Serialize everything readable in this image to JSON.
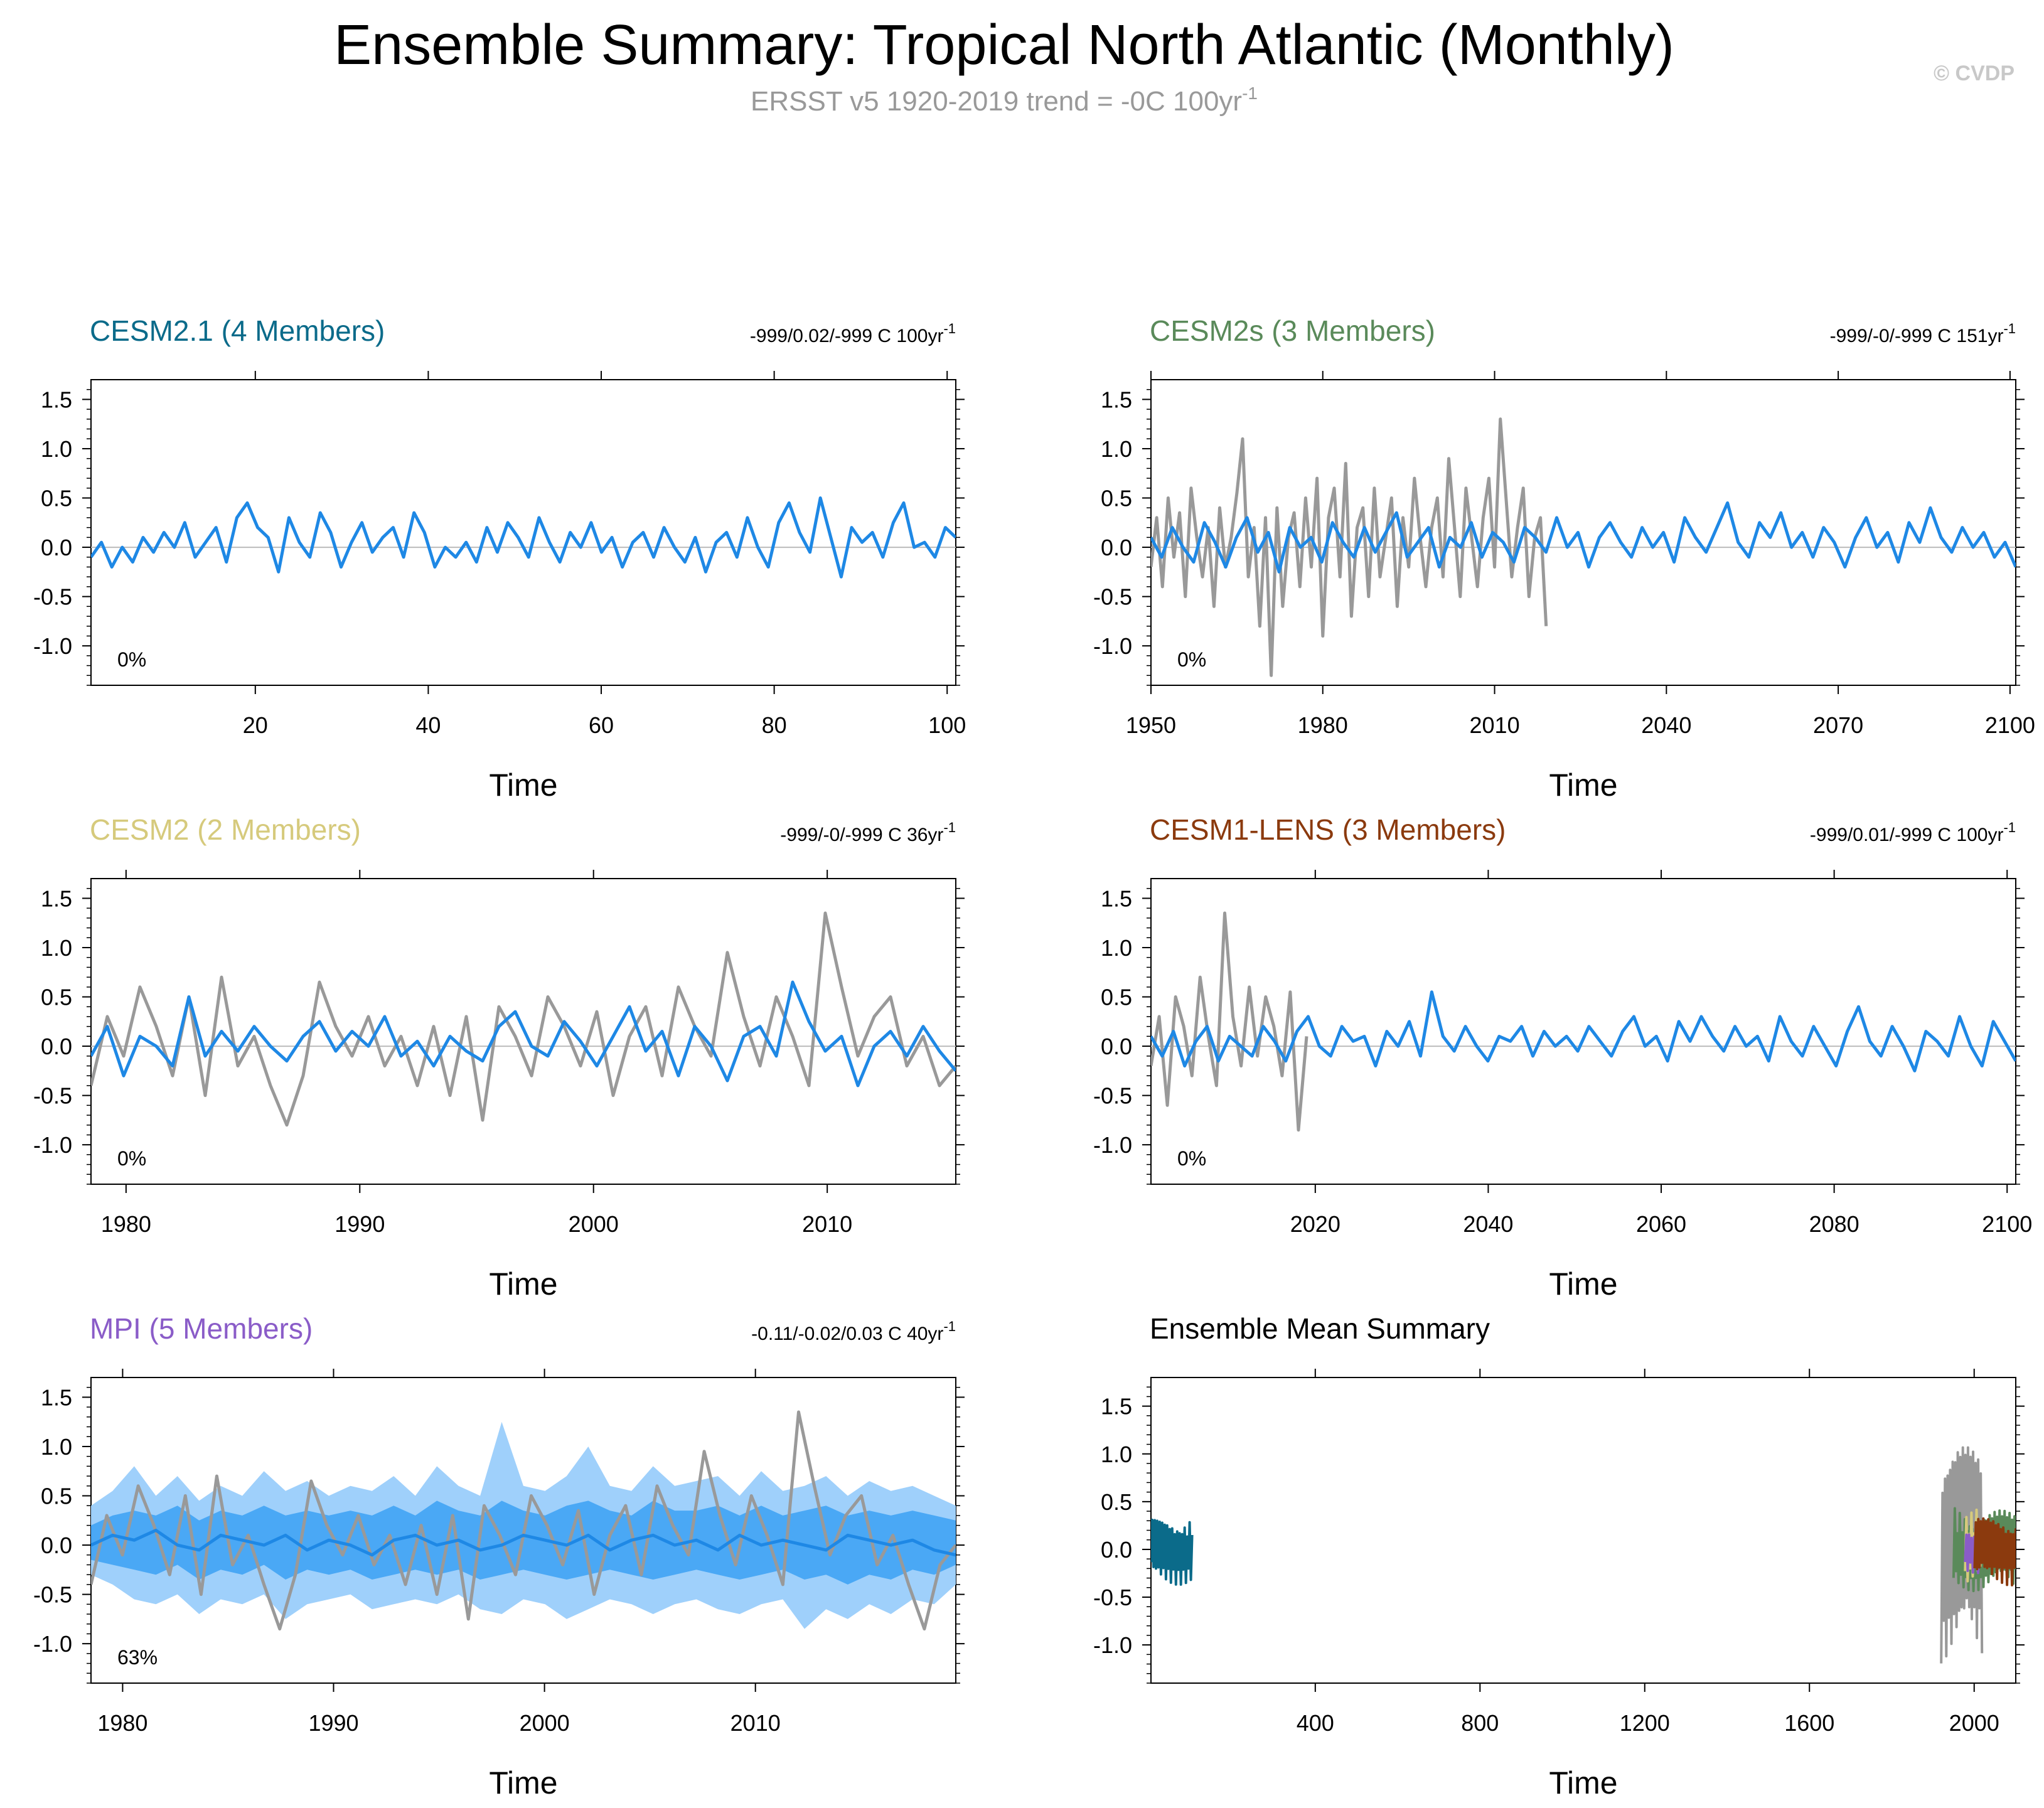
{
  "title": "Ensemble Summary: Tropical North Atlantic (Monthly)",
  "subtitle": "ERSST v5 1920-2019 trend = -0C 100yr",
  "subtitle_sup": "-1",
  "copyright": "© CVDP",
  "colors": {
    "obs": "#999999",
    "model": "#1e88e5",
    "spread_outer": "#9fd0fb",
    "spread_inner": "#4aa8f5"
  },
  "chart_data": [
    {
      "type": "line",
      "title": "CESM2.1 (4 Members)",
      "title_color": "#0b6b8a",
      "trend_label": "-999/0.02/-999 C 100yr",
      "trend_sup": "-1",
      "percent_label": "0%",
      "xlabel": "Time",
      "xlim": [
        1,
        101
      ],
      "ylim": [
        -1.4,
        1.7
      ],
      "xticks": [
        20,
        40,
        60,
        80,
        100
      ],
      "yticks": [
        -1.0,
        -0.5,
        0.0,
        0.5,
        1.0,
        1.5
      ],
      "series": [
        {
          "name": "Ensemble mean",
          "color": "#1e88e5",
          "x_start": 1,
          "x_end": 101,
          "values": [
            -0.1,
            0.05,
            -0.2,
            0.0,
            -0.15,
            0.1,
            -0.05,
            0.15,
            0.0,
            0.25,
            -0.1,
            0.05,
            0.2,
            -0.15,
            0.3,
            0.45,
            0.2,
            0.1,
            -0.25,
            0.3,
            0.05,
            -0.1,
            0.35,
            0.15,
            -0.2,
            0.05,
            0.25,
            -0.05,
            0.1,
            0.2,
            -0.1,
            0.35,
            0.15,
            -0.2,
            0.0,
            -0.1,
            0.05,
            -0.15,
            0.2,
            -0.05,
            0.25,
            0.1,
            -0.1,
            0.3,
            0.05,
            -0.15,
            0.15,
            0.0,
            0.25,
            -0.05,
            0.1,
            -0.2,
            0.05,
            0.15,
            -0.1,
            0.2,
            0.0,
            -0.15,
            0.1,
            -0.25,
            0.05,
            0.15,
            -0.1,
            0.3,
            0.0,
            -0.2,
            0.25,
            0.45,
            0.15,
            -0.05,
            0.5,
            0.1,
            -0.3,
            0.2,
            0.05,
            0.15,
            -0.1,
            0.25,
            0.45,
            0.0,
            0.05,
            -0.1,
            0.2,
            0.1
          ]
        }
      ]
    },
    {
      "type": "line",
      "title": "CESM2s (3 Members)",
      "title_color": "#5a8a5a",
      "trend_label": "-999/-0/-999 C 151yr",
      "trend_sup": "-1",
      "percent_label": "0%",
      "xlabel": "Time",
      "xlim": [
        1950,
        2101
      ],
      "ylim": [
        -1.4,
        1.7
      ],
      "xticks": [
        1950,
        1980,
        2010,
        2040,
        2070,
        2100
      ],
      "yticks": [
        -1.0,
        -0.5,
        0.0,
        0.5,
        1.0,
        1.5
      ],
      "series": [
        {
          "name": "ERSST v5",
          "color": "#999999",
          "x_start": 1950,
          "x_end": 2019,
          "values": [
            -0.2,
            0.3,
            -0.4,
            0.5,
            -0.1,
            0.35,
            -0.5,
            0.6,
            0.1,
            -0.3,
            0.2,
            -0.6,
            0.4,
            -0.2,
            0.1,
            0.55,
            1.1,
            -0.3,
            0.2,
            -0.8,
            0.3,
            -1.3,
            0.4,
            -0.6,
            0.1,
            0.35,
            -0.4,
            0.5,
            -0.2,
            0.7,
            -0.9,
            0.3,
            0.6,
            -0.3,
            0.85,
            -0.7,
            0.2,
            0.4,
            -0.5,
            0.6,
            -0.3,
            0.1,
            0.5,
            -0.6,
            0.3,
            -0.2,
            0.7,
            0.1,
            -0.4,
            0.2,
            0.5,
            -0.3,
            0.9,
            0.2,
            -0.5,
            0.6,
            0.1,
            -0.4,
            0.3,
            0.7,
            -0.2,
            1.3,
            0.5,
            -0.3,
            0.2,
            0.6,
            -0.5,
            0.1,
            0.3,
            -0.8
          ]
        },
        {
          "name": "Ensemble mean",
          "color": "#1e88e5",
          "x_start": 1950,
          "x_end": 2101,
          "values": [
            0.1,
            -0.1,
            0.2,
            0.0,
            -0.15,
            0.25,
            0.05,
            -0.2,
            0.1,
            0.3,
            -0.05,
            0.15,
            -0.25,
            0.2,
            0.0,
            0.1,
            -0.15,
            0.25,
            0.05,
            -0.1,
            0.2,
            -0.05,
            0.15,
            0.35,
            -0.1,
            0.05,
            0.2,
            -0.2,
            0.1,
            0.0,
            0.25,
            -0.1,
            0.15,
            0.05,
            -0.15,
            0.2,
            0.1,
            -0.05,
            0.3,
            0.0,
            0.15,
            -0.2,
            0.1,
            0.25,
            0.05,
            -0.1,
            0.2,
            0.0,
            0.15,
            -0.15,
            0.3,
            0.1,
            -0.05,
            0.2,
            0.45,
            0.05,
            -0.1,
            0.25,
            0.1,
            0.35,
            0.0,
            0.15,
            -0.1,
            0.2,
            0.05,
            -0.2,
            0.1,
            0.3,
            0.0,
            0.15,
            -0.15,
            0.25,
            0.05,
            0.4,
            0.1,
            -0.05,
            0.2,
            0.0,
            0.15,
            -0.1,
            0.05,
            -0.2
          ]
        }
      ]
    },
    {
      "type": "line",
      "title": "CESM2 (2 Members)",
      "title_color": "#d6ca7c",
      "trend_label": "-999/-0/-999 C 36yr",
      "trend_sup": "-1",
      "percent_label": "0%",
      "xlabel": "Time",
      "xlim": [
        1978.5,
        2015.5
      ],
      "ylim": [
        -1.4,
        1.7
      ],
      "xticks": [
        1980,
        1990,
        2000,
        2010
      ],
      "yticks": [
        -1.0,
        -0.5,
        0.0,
        0.5,
        1.0,
        1.5
      ],
      "series": [
        {
          "name": "ERSST v5",
          "color": "#999999",
          "x_start": 1978.5,
          "x_end": 2015.5,
          "values": [
            -0.4,
            0.3,
            -0.1,
            0.6,
            0.2,
            -0.3,
            0.5,
            -0.5,
            0.7,
            -0.2,
            0.1,
            -0.4,
            -0.8,
            -0.3,
            0.65,
            0.2,
            -0.1,
            0.3,
            -0.2,
            0.1,
            -0.4,
            0.2,
            -0.5,
            0.3,
            -0.75,
            0.4,
            0.1,
            -0.3,
            0.5,
            0.2,
            -0.2,
            0.35,
            -0.5,
            0.1,
            0.4,
            -0.3,
            0.6,
            0.2,
            -0.1,
            0.95,
            0.3,
            -0.2,
            0.5,
            0.1,
            -0.4,
            1.35,
            0.6,
            -0.1,
            0.3,
            0.5,
            -0.2,
            0.1,
            -0.4,
            -0.2
          ]
        },
        {
          "name": "Ensemble mean",
          "color": "#1e88e5",
          "x_start": 1978.5,
          "x_end": 2015.5,
          "values": [
            -0.1,
            0.2,
            -0.3,
            0.1,
            0.0,
            -0.2,
            0.5,
            -0.1,
            0.15,
            -0.05,
            0.2,
            0.0,
            -0.15,
            0.1,
            0.25,
            -0.05,
            0.15,
            0.0,
            0.3,
            -0.1,
            0.05,
            -0.2,
            0.1,
            -0.05,
            -0.15,
            0.2,
            0.35,
            0.0,
            -0.1,
            0.25,
            0.05,
            -0.2,
            0.1,
            0.4,
            -0.05,
            0.15,
            -0.3,
            0.2,
            0.0,
            -0.35,
            0.1,
            0.2,
            -0.1,
            0.65,
            0.25,
            -0.05,
            0.1,
            -0.4,
            0.0,
            0.15,
            -0.1,
            0.2,
            -0.05,
            -0.25
          ]
        }
      ]
    },
    {
      "type": "line",
      "title": "CESM1-LENS (3 Members)",
      "title_color": "#8b3a0e",
      "trend_label": "-999/0.01/-999 C 100yr",
      "trend_sup": "-1",
      "percent_label": "0%",
      "xlabel": "Time",
      "xlim": [
        2001,
        2101
      ],
      "ylim": [
        -1.4,
        1.7
      ],
      "xticks": [
        2020,
        2040,
        2060,
        2080,
        2100
      ],
      "yticks": [
        -1.0,
        -0.5,
        0.0,
        0.5,
        1.0,
        1.5
      ],
      "series": [
        {
          "name": "ERSST v5",
          "color": "#999999",
          "x_start": 2001,
          "x_end": 2019,
          "values": [
            -0.2,
            0.3,
            -0.6,
            0.5,
            0.2,
            -0.3,
            0.7,
            0.1,
            -0.4,
            1.35,
            0.3,
            -0.2,
            0.6,
            -0.1,
            0.5,
            0.2,
            -0.3,
            0.55,
            -0.85,
            0.1
          ]
        },
        {
          "name": "Ensemble mean",
          "color": "#1e88e5",
          "x_start": 2001,
          "x_end": 2101,
          "values": [
            0.1,
            -0.1,
            0.15,
            -0.2,
            0.05,
            0.2,
            -0.15,
            0.1,
            0.0,
            -0.1,
            0.2,
            0.05,
            -0.15,
            0.15,
            0.3,
            0.0,
            -0.1,
            0.2,
            0.05,
            0.1,
            -0.2,
            0.15,
            0.0,
            0.25,
            -0.1,
            0.55,
            0.1,
            -0.05,
            0.2,
            0.0,
            -0.15,
            0.1,
            0.05,
            0.2,
            -0.1,
            0.15,
            0.0,
            0.1,
            -0.05,
            0.2,
            0.05,
            -0.1,
            0.15,
            0.3,
            0.0,
            0.1,
            -0.15,
            0.25,
            0.05,
            0.3,
            0.1,
            -0.05,
            0.2,
            0.0,
            0.1,
            -0.15,
            0.3,
            0.05,
            -0.1,
            0.2,
            0.0,
            -0.2,
            0.15,
            0.4,
            0.05,
            -0.1,
            0.2,
            0.0,
            -0.25,
            0.15,
            0.05,
            -0.1,
            0.3,
            0.0,
            -0.2,
            0.25,
            0.05,
            -0.15
          ]
        }
      ]
    },
    {
      "type": "area",
      "title": "MPI (5 Members)",
      "title_color": "#8a5cc8",
      "trend_label": "-0.11/-0.02/0.03 C 40yr",
      "trend_sup": "-1",
      "percent_label": "63%",
      "xlabel": "Time",
      "xlim": [
        1978.5,
        2019.5
      ],
      "ylim": [
        -1.4,
        1.7
      ],
      "xticks": [
        1980,
        1990,
        2000,
        2010
      ],
      "yticks": [
        -1.0,
        -0.5,
        0.0,
        0.5,
        1.0,
        1.5
      ],
      "spread": {
        "x_start": 1978.5,
        "x_end": 2019.5,
        "outer_upper": [
          0.4,
          0.55,
          0.8,
          0.5,
          0.7,
          0.45,
          0.6,
          0.5,
          0.75,
          0.55,
          0.65,
          0.5,
          0.6,
          0.55,
          0.7,
          0.5,
          0.8,
          0.6,
          0.5,
          1.25,
          0.6,
          0.55,
          0.7,
          1.0,
          0.6,
          0.55,
          0.8,
          0.6,
          0.65,
          0.7,
          0.5,
          0.75,
          0.55,
          0.6,
          0.7,
          0.5,
          0.65,
          0.55,
          0.6,
          0.5,
          0.4
        ],
        "inner_upper": [
          0.2,
          0.3,
          0.35,
          0.3,
          0.4,
          0.25,
          0.35,
          0.3,
          0.4,
          0.3,
          0.35,
          0.3,
          0.35,
          0.3,
          0.4,
          0.3,
          0.45,
          0.35,
          0.3,
          0.45,
          0.35,
          0.3,
          0.4,
          0.45,
          0.35,
          0.3,
          0.45,
          0.35,
          0.35,
          0.4,
          0.3,
          0.4,
          0.3,
          0.35,
          0.4,
          0.3,
          0.35,
          0.3,
          0.35,
          0.3,
          0.25
        ],
        "inner_lower": [
          -0.15,
          -0.2,
          -0.25,
          -0.3,
          -0.2,
          -0.35,
          -0.25,
          -0.3,
          -0.2,
          -0.35,
          -0.25,
          -0.3,
          -0.25,
          -0.35,
          -0.3,
          -0.25,
          -0.3,
          -0.25,
          -0.35,
          -0.3,
          -0.25,
          -0.3,
          -0.35,
          -0.3,
          -0.25,
          -0.3,
          -0.35,
          -0.3,
          -0.25,
          -0.3,
          -0.35,
          -0.3,
          -0.25,
          -0.35,
          -0.3,
          -0.4,
          -0.3,
          -0.35,
          -0.25,
          -0.3,
          -0.2
        ],
        "outer_lower": [
          -0.3,
          -0.4,
          -0.55,
          -0.6,
          -0.5,
          -0.7,
          -0.55,
          -0.6,
          -0.5,
          -0.75,
          -0.6,
          -0.55,
          -0.5,
          -0.65,
          -0.6,
          -0.55,
          -0.6,
          -0.5,
          -0.65,
          -0.7,
          -0.55,
          -0.6,
          -0.75,
          -0.65,
          -0.55,
          -0.6,
          -0.7,
          -0.6,
          -0.55,
          -0.65,
          -0.7,
          -0.6,
          -0.55,
          -0.85,
          -0.65,
          -0.75,
          -0.6,
          -0.7,
          -0.55,
          -0.6,
          -0.4
        ]
      },
      "series": [
        {
          "name": "ERSST v5",
          "color": "#999999",
          "x_start": 1978.5,
          "x_end": 2019.5,
          "values": [
            -0.4,
            0.3,
            -0.1,
            0.6,
            0.2,
            -0.3,
            0.5,
            -0.5,
            0.7,
            -0.2,
            0.1,
            -0.4,
            -0.85,
            -0.3,
            0.65,
            0.2,
            -0.1,
            0.3,
            -0.2,
            0.1,
            -0.4,
            0.2,
            -0.5,
            0.3,
            -0.75,
            0.4,
            0.1,
            -0.3,
            0.5,
            0.2,
            -0.2,
            0.35,
            -0.5,
            0.1,
            0.4,
            -0.3,
            0.6,
            0.2,
            -0.1,
            0.95,
            0.3,
            -0.2,
            0.5,
            0.1,
            -0.4,
            1.35,
            0.6,
            -0.1,
            0.3,
            0.5,
            -0.2,
            0.1,
            -0.4,
            -0.85,
            -0.2,
            0.0
          ]
        },
        {
          "name": "Ensemble mean",
          "color": "#1e88e5",
          "x_start": 1978.5,
          "x_end": 2019.5,
          "values": [
            0.0,
            0.1,
            0.05,
            0.15,
            0.0,
            -0.05,
            0.1,
            0.05,
            0.0,
            0.1,
            -0.05,
            0.05,
            0.0,
            -0.1,
            0.05,
            0.1,
            0.0,
            0.05,
            -0.05,
            0.0,
            0.1,
            0.05,
            0.0,
            0.1,
            -0.05,
            0.05,
            0.1,
            0.0,
            0.05,
            -0.05,
            0.1,
            0.0,
            0.05,
            0.0,
            -0.05,
            0.1,
            0.05,
            0.0,
            0.05,
            -0.05,
            -0.1
          ]
        }
      ]
    },
    {
      "type": "line",
      "title": "Ensemble Mean Summary",
      "title_color": "#000000",
      "xlabel": "Time",
      "xlim": [
        1,
        2101
      ],
      "ylim": [
        -1.4,
        1.8
      ],
      "xticks": [
        400,
        800,
        1200,
        1600,
        2000
      ],
      "yticks": [
        -1.0,
        -0.5,
        0.0,
        0.5,
        1.0,
        1.5
      ],
      "series": [
        {
          "name": "CESM2.1",
          "color": "#0b6b8a",
          "x_start": 1,
          "x_end": 101,
          "amp": 0.45
        },
        {
          "name": "ERSST v5",
          "color": "#999999",
          "x_start": 1920,
          "x_end": 2019,
          "amp": 1.5
        },
        {
          "name": "CESM2s",
          "color": "#5a8a5a",
          "x_start": 1950,
          "x_end": 2101,
          "amp": 0.55
        },
        {
          "name": "CESM2",
          "color": "#d6ca7c",
          "x_start": 1978,
          "x_end": 2015,
          "amp": 0.5
        },
        {
          "name": "MPI",
          "color": "#8a5cc8",
          "x_start": 1978,
          "x_end": 2019,
          "amp": 0.3
        },
        {
          "name": "CESM1-LENS",
          "color": "#8b3a0e",
          "x_start": 2001,
          "x_end": 2101,
          "amp": 0.45
        }
      ]
    }
  ]
}
